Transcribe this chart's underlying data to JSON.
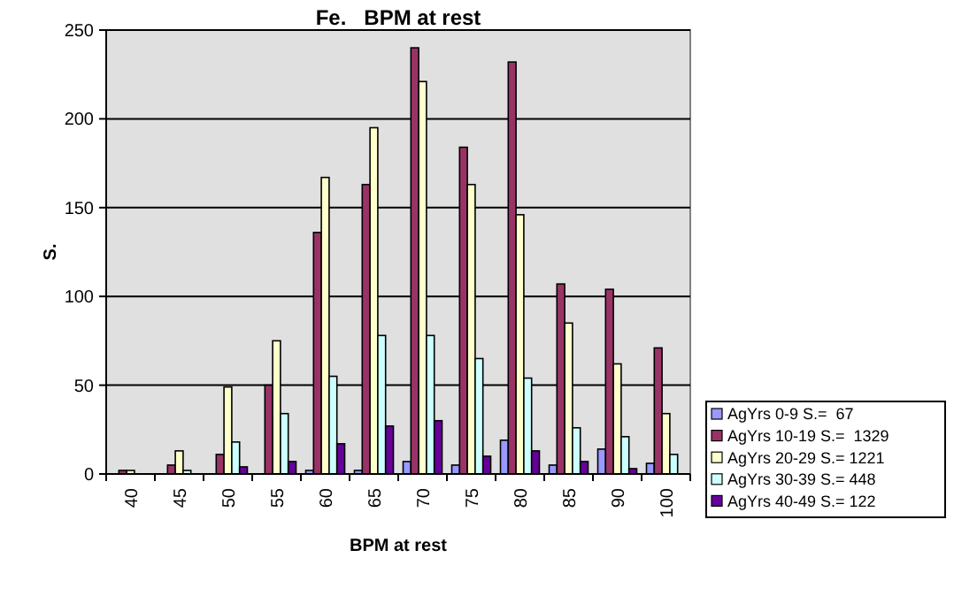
{
  "chart_data": {
    "type": "bar",
    "title": "Fe.   BPM at rest",
    "xlabel": "BPM at rest",
    "ylabel": "S.",
    "categories": [
      "40",
      "45",
      "50",
      "55",
      "60",
      "65",
      "70",
      "75",
      "80",
      "85",
      "90",
      "100"
    ],
    "series": [
      {
        "name": "AgYrs 0-9 S.=  67",
        "color": "#9999ff",
        "values": [
          0,
          0,
          0,
          0,
          2,
          2,
          7,
          5,
          19,
          5,
          14,
          6
        ]
      },
      {
        "name": "AgYrs 10-19 S.=  1329",
        "color": "#993366",
        "values": [
          2,
          5,
          11,
          50,
          136,
          163,
          240,
          184,
          232,
          107,
          104,
          71
        ]
      },
      {
        "name": "AgYrs 20-29 S.= 1221",
        "color": "#ffffcc",
        "values": [
          2,
          13,
          49,
          75,
          167,
          195,
          221,
          163,
          146,
          85,
          62,
          34
        ]
      },
      {
        "name": "AgYrs 30-39 S.= 448",
        "color": "#ccffff",
        "values": [
          null,
          2,
          18,
          34,
          55,
          78,
          78,
          65,
          54,
          26,
          21,
          11
        ]
      },
      {
        "name": "AgYrs 40-49 S.= 122",
        "color": "#660099",
        "values": [
          0,
          0,
          4,
          7,
          17,
          27,
          30,
          10,
          13,
          7,
          3,
          0
        ]
      }
    ],
    "ylim": [
      0,
      250
    ],
    "yticks": [
      0,
      50,
      100,
      150,
      200,
      250
    ],
    "grid": "y",
    "legend": "right"
  }
}
